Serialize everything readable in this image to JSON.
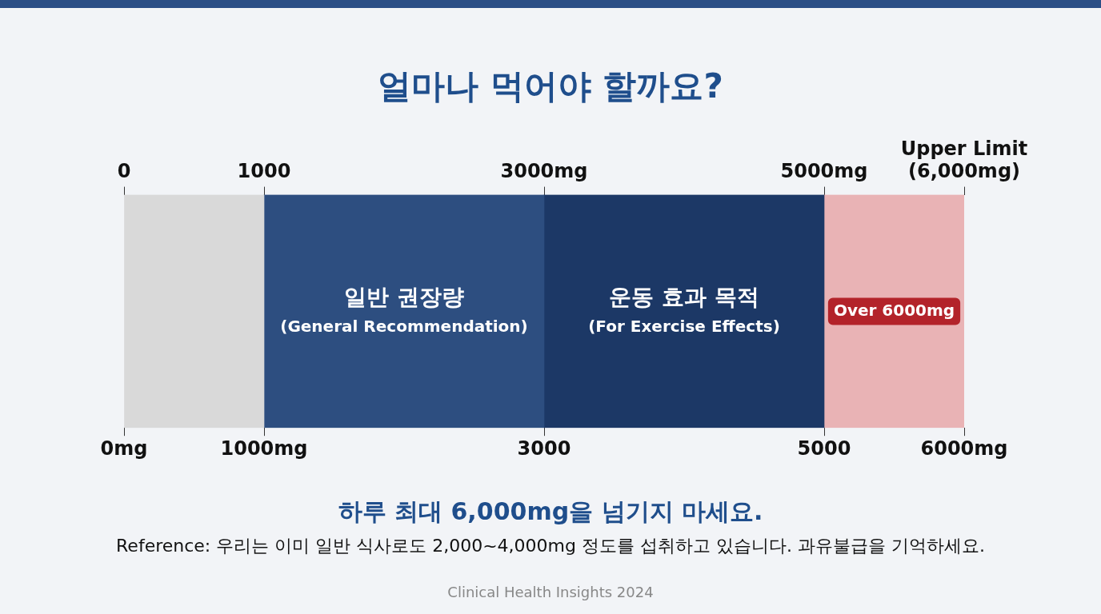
{
  "chart_data": {
    "type": "bar",
    "orientation": "horizontal",
    "stacked": true,
    "title": "얼마나 먹어야 할까요?",
    "categories": [
      null
    ],
    "series": [
      {
        "color": "#d9d9d9",
        "values": [
          1000
        ]
      },
      {
        "name": "일반 권장량\n(General Recommendation)",
        "color": "#2d4e80",
        "values": [
          2000
        ]
      },
      {
        "name": "운동 효과 목적\n(For Exercise Effects)",
        "color": "#1c3866",
        "values": [
          2000
        ]
      },
      {
        "name": "Over 6000mg",
        "color": "#e9b3b5",
        "values": [
          1000
        ]
      }
    ],
    "xlim": [
      0,
      6000
    ],
    "xticks": [
      {
        "value": 0,
        "label": "0mg"
      },
      {
        "value": 1000,
        "label": "1000mg"
      },
      3000,
      5000,
      {
        "value": 6000,
        "label": "6000mg"
      }
    ],
    "x2lim": [
      0,
      6000
    ],
    "x2ticks": [
      0,
      1000,
      {
        "value": 3000,
        "label": "3000mg"
      },
      {
        "value": 5000,
        "label": "5000mg"
      },
      {
        "value": 6000,
        "label": "Upper Limit\n(6,000mg)"
      }
    ],
    "legend": false,
    "annotations": [
      "하루 최대 6,000mg을 넘기지 마세요.",
      "Reference: 우리는 이미 일반 식사로도 2,000~4,000mg 정도를 섭취하고 있습니다. 과유불급을 기억하세요.",
      "Clinical Health Insights 2024"
    ]
  }
}
